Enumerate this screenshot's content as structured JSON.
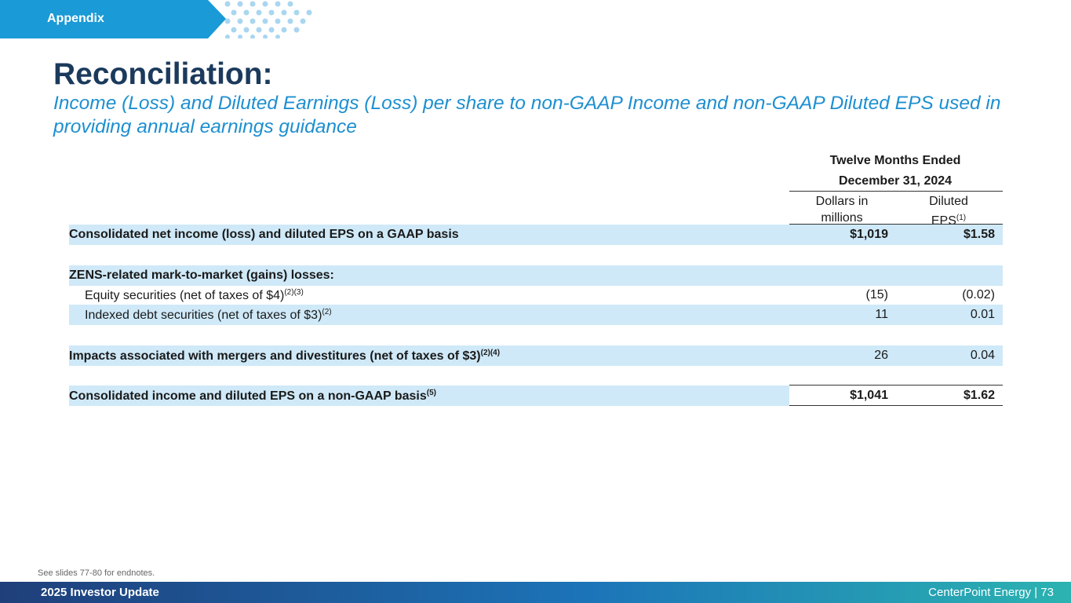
{
  "header": {
    "section_tab": "Appendix"
  },
  "title": "Reconciliation:",
  "subtitle": "Income (Loss) and Diluted Earnings (Loss) per share to non-GAAP Income and non-GAAP Diluted EPS used in providing annual earnings guidance",
  "table": {
    "period_line1": "Twelve Months Ended",
    "period_line2": "December 31, 2024",
    "col1_line1": "Dollars in",
    "col1_line2": "millions",
    "col2_line1": "Diluted",
    "col2_line2": "EPS",
    "col2_sup": "(1)",
    "rows": [
      {
        "label": "Consolidated net income (loss) and diluted EPS on a GAAP basis",
        "sup": "",
        "v1": "$1,019",
        "v2": "$1.58"
      },
      {
        "label": "ZENS-related mark-to-market (gains) losses:",
        "sup": "",
        "v1": "",
        "v2": ""
      },
      {
        "label": "Equity securities (net of taxes of $4)",
        "sup": "(2)(3)",
        "v1": "(15)",
        "v2": "(0.02)"
      },
      {
        "label": "Indexed debt securities (net of taxes of $3)",
        "sup": "(2)",
        "v1": "11",
        "v2": "0.01"
      },
      {
        "label": "Impacts associated with mergers and divestitures (net of taxes of $3)",
        "sup": "(2)(4)",
        "v1": "26",
        "v2": "0.04"
      },
      {
        "label": "Consolidated income and diluted EPS on a non-GAAP basis",
        "sup": "(5)",
        "v1": "$1,041",
        "v2": "$1.62"
      }
    ]
  },
  "endnote": "See slides 77-80 for endnotes.",
  "footer": {
    "left": "2025 Investor Update",
    "right": "CenterPoint Energy | 73"
  },
  "colors": {
    "navy": "#1b3a5c",
    "accent_blue": "#1d8fd0",
    "row_shade": "#cfe9f8"
  }
}
